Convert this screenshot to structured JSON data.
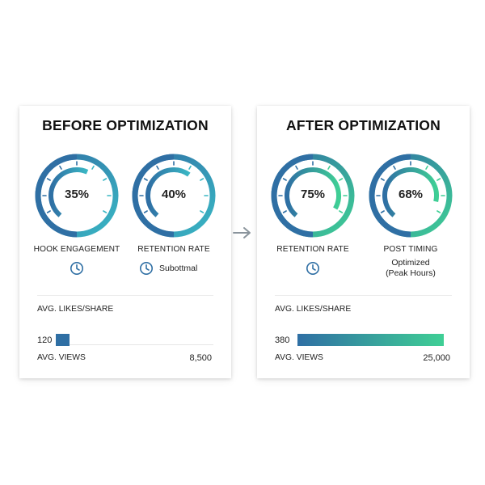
{
  "before": {
    "title": "BEFORE OPTIMIZATION",
    "gauges": [
      {
        "value_text": "35%",
        "value": 0.35,
        "label": "HOOK ENGAGEMENT"
      },
      {
        "value_text": "40%",
        "value": 0.4,
        "label": "RETENTION RATE"
      }
    ],
    "status_right": "Subottmal",
    "likes_label": "AVG. LIKES/SHARE",
    "likes_value": "120",
    "likes_level": 120,
    "views_label": "AVG. VIEWS",
    "views_value": "8,500"
  },
  "after": {
    "title": "AFTER OPTIMIZATION",
    "gauges": [
      {
        "value_text": "75%",
        "value": 0.75,
        "label": "RETENTION RATE"
      },
      {
        "value_text": "68%",
        "value": 0.68,
        "label": "POST TIMING"
      }
    ],
    "status_right_line1": "Optimized",
    "status_right_line2": "(Peak Hours)",
    "likes_label": "AVG. LIKES/SHARE",
    "likes_value": "380",
    "likes_level": 380,
    "views_label": "AVG. VIEWS",
    "views_value": "25,000"
  },
  "icons": {
    "clock": "clock-icon",
    "arrow": "arrow-right-icon"
  },
  "colors": {
    "blue": "#2f6fa4",
    "teal": "#3ab7c4",
    "green": "#3fcf95",
    "track": "#e3ecf2",
    "arrow": "#8a949c"
  }
}
